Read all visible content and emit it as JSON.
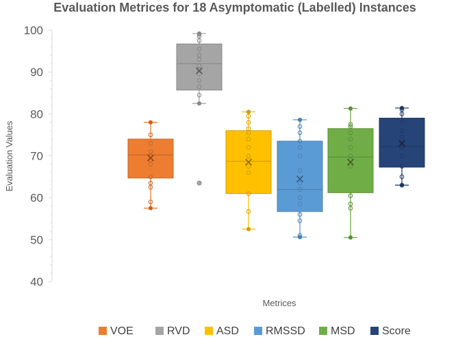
{
  "chart_data": {
    "type": "box",
    "title": "Evaluation Metrices for 18 Asymptomatic (Labelled) Instances",
    "xlabel": "Metrices",
    "ylabel": "Evaluation Values",
    "ylim": [
      40,
      100
    ],
    "yticks": [
      40,
      50,
      60,
      70,
      80,
      90,
      100
    ],
    "grid": false,
    "legend_position": "bottom",
    "series": [
      {
        "name": "VOE",
        "color": "#ED7D31",
        "min": 57.5,
        "q1": 64.7,
        "median": 70.2,
        "q3": 74.0,
        "max": 78.0,
        "mean": 69.5,
        "outliers": [],
        "points": [
          59,
          62.5,
          63.5,
          65,
          68,
          69,
          70,
          71,
          73,
          75
        ]
      },
      {
        "name": "RVD",
        "color": "#A5A5A5",
        "min": 82.5,
        "q1": 85.7,
        "median": 92.0,
        "q3": 96.7,
        "max": 99.2,
        "mean": 90.3,
        "outliers": [
          63.5
        ],
        "points": [
          84.5,
          86.5,
          88,
          89.5,
          90.5,
          91.5,
          93,
          94,
          95.5,
          97.5,
          98.5,
          99
        ]
      },
      {
        "name": "ASD",
        "color": "#FFC000",
        "min": 52.5,
        "q1": 61.0,
        "median": 68.7,
        "q3": 76.0,
        "max": 80.5,
        "mean": 68.5,
        "outliers": [],
        "points": [
          56.7,
          61,
          66,
          67.5,
          69,
          70,
          72,
          74,
          75.5,
          76.5,
          78,
          79.5
        ]
      },
      {
        "name": "RMSSD",
        "color": "#5B9BD5",
        "min": 50.6,
        "q1": 56.7,
        "median": 62.0,
        "q3": 73.5,
        "max": 78.6,
        "mean": 64.5,
        "outliers": [],
        "points": [
          51,
          54.5,
          56,
          58.5,
          60,
          62,
          63.5,
          66.5,
          70,
          72,
          73.5,
          75.5,
          77
        ]
      },
      {
        "name": "MSD",
        "color": "#70AD47",
        "min": 50.5,
        "q1": 61.2,
        "median": 69.7,
        "q3": 76.5,
        "max": 81.3,
        "mean": 68.5,
        "outliers": [],
        "points": [
          57.5,
          58.5,
          60.5,
          67.5,
          69,
          70,
          72,
          74,
          75.5,
          77,
          77.5
        ]
      },
      {
        "name": "Score",
        "color": "#264478",
        "min": 63.0,
        "q1": 67.3,
        "median": 72.2,
        "q3": 79.0,
        "max": 81.4,
        "mean": 73.0,
        "outliers": [],
        "points": [
          63,
          65,
          67.5,
          70,
          72,
          73,
          74.5,
          76,
          78,
          80,
          81
        ]
      }
    ]
  }
}
